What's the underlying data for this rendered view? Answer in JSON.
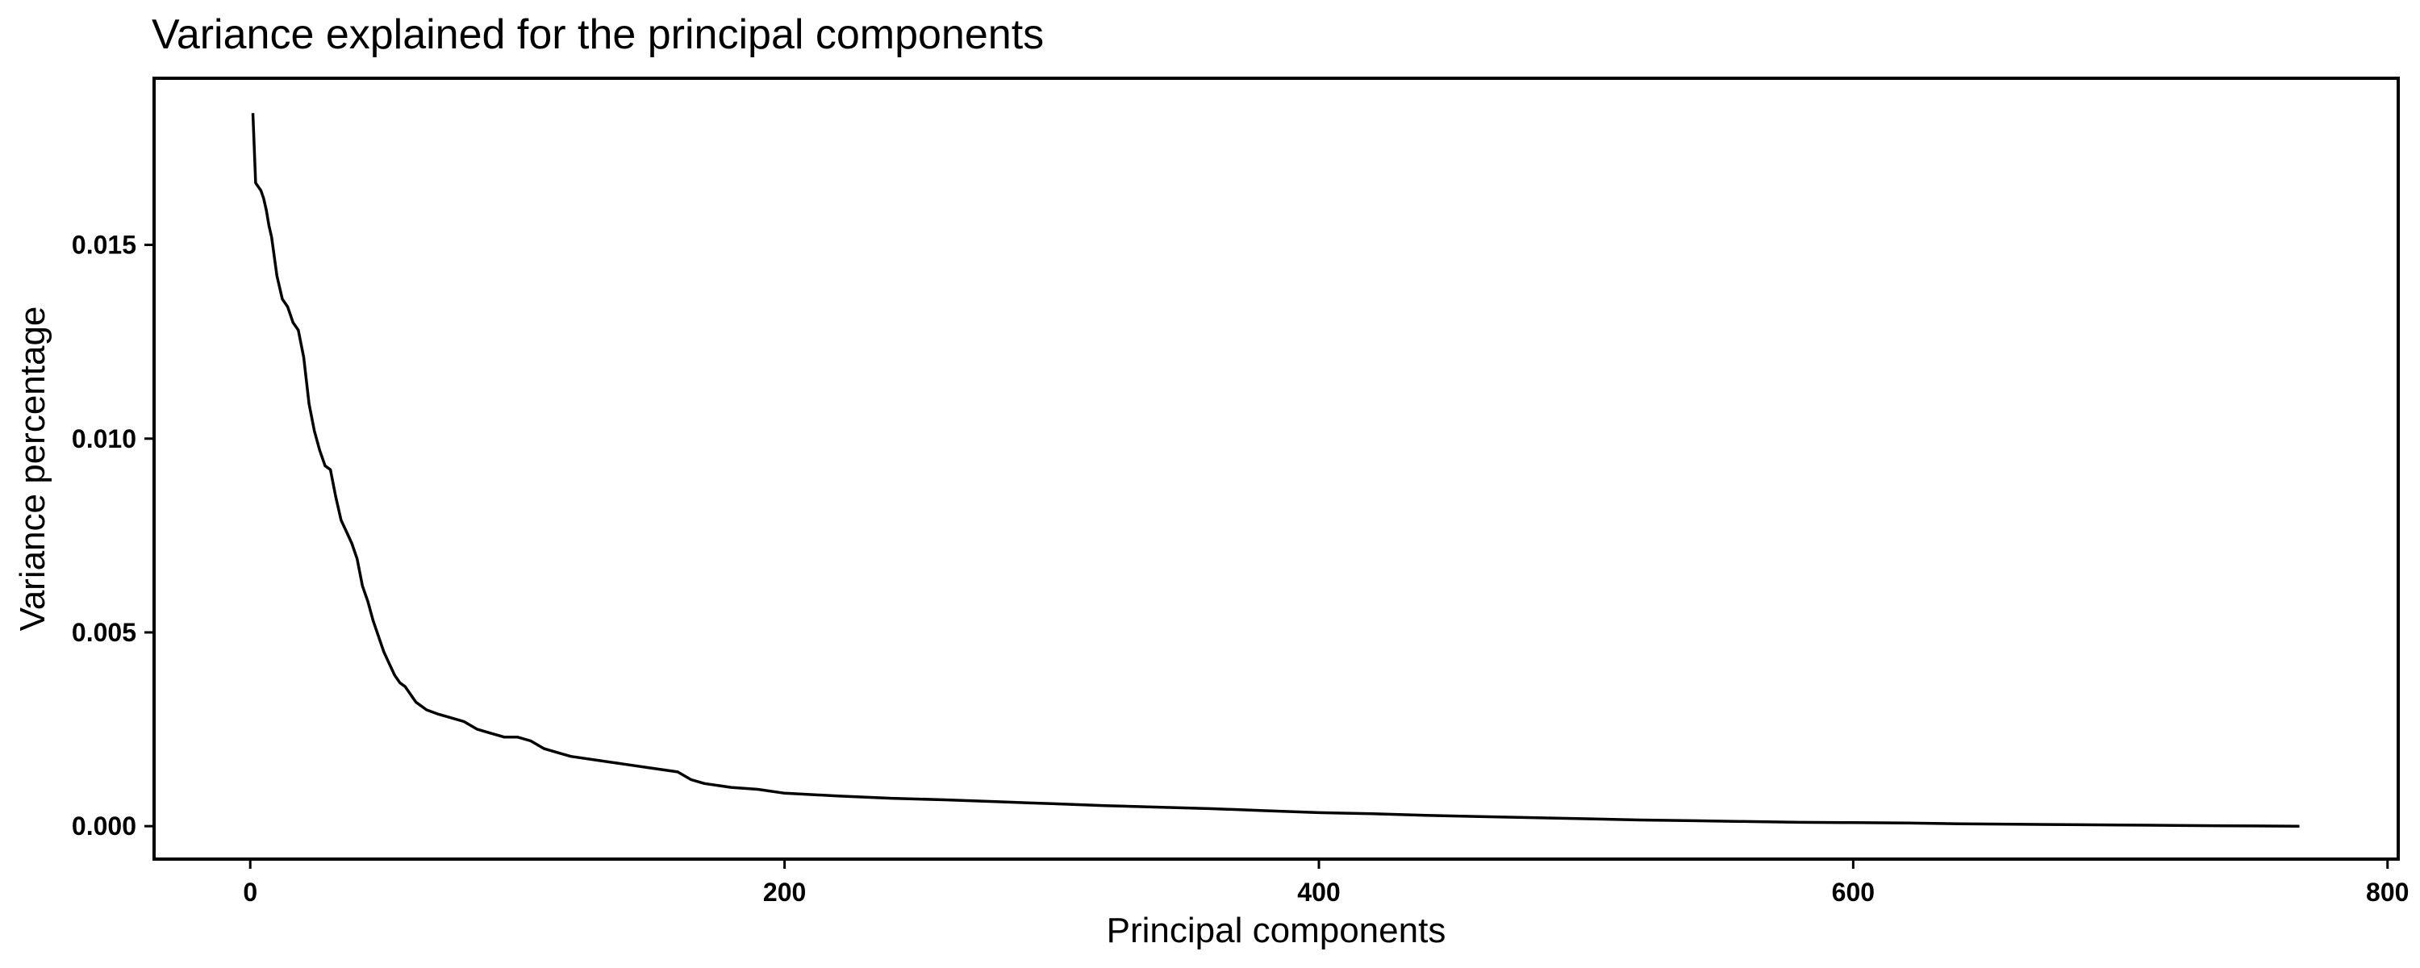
{
  "chart_data": {
    "type": "line",
    "title": "Variance explained for the principal components",
    "xlabel": "Principal components",
    "ylabel": "Variance percentage",
    "xlim": [
      -36,
      804
    ],
    "ylim": [
      -0.00085,
      0.0193
    ],
    "x_ticks": [
      0,
      200,
      400,
      600,
      800
    ],
    "x_tick_labels": [
      "0",
      "200",
      "400",
      "600",
      "800"
    ],
    "y_ticks": [
      0.0,
      0.005,
      0.01,
      0.015
    ],
    "y_tick_labels": [
      "0.000",
      "0.005",
      "0.010",
      "0.015"
    ],
    "grid": false,
    "legend": "none",
    "line_color": "#000000",
    "series": [
      {
        "x": [
          1,
          2,
          3,
          4,
          5,
          6,
          7,
          8,
          9,
          10,
          12,
          14,
          16,
          18,
          20,
          22,
          24,
          26,
          28,
          30,
          32,
          34,
          36,
          38,
          40,
          42,
          44,
          46,
          48,
          50,
          52,
          54,
          56,
          58,
          60,
          62,
          64,
          66,
          70,
          75,
          80,
          85,
          90,
          95,
          100,
          105,
          110,
          115,
          120,
          130,
          140,
          150,
          160,
          165,
          170,
          180,
          190,
          200,
          220,
          240,
          260,
          280,
          300,
          320,
          340,
          360,
          380,
          400,
          420,
          440,
          460,
          480,
          500,
          520,
          540,
          560,
          580,
          600,
          620,
          640,
          660,
          680,
          700,
          720,
          740,
          767
        ],
        "y": [
          0.0184,
          0.0166,
          0.0165,
          0.0164,
          0.0162,
          0.0159,
          0.0155,
          0.0152,
          0.0147,
          0.0142,
          0.0136,
          0.0134,
          0.013,
          0.0128,
          0.0121,
          0.0109,
          0.0102,
          0.0097,
          0.0093,
          0.0092,
          0.0085,
          0.0079,
          0.0076,
          0.0073,
          0.0069,
          0.0062,
          0.0058,
          0.0053,
          0.0049,
          0.0045,
          0.0042,
          0.0039,
          0.0037,
          0.0036,
          0.0034,
          0.0032,
          0.0031,
          0.003,
          0.0029,
          0.0028,
          0.0027,
          0.0025,
          0.0024,
          0.0023,
          0.0023,
          0.0022,
          0.002,
          0.0019,
          0.0018,
          0.0017,
          0.0016,
          0.0015,
          0.0014,
          0.0012,
          0.0011,
          0.001,
          0.00095,
          0.00085,
          0.00078,
          0.00072,
          0.00068,
          0.00063,
          0.00058,
          0.00053,
          0.00049,
          0.00045,
          0.0004,
          0.00035,
          0.00032,
          0.00028,
          0.00025,
          0.00022,
          0.00019,
          0.00016,
          0.00014,
          0.00012,
          0.0001,
          9e-05,
          8e-05,
          6e-05,
          5e-05,
          4e-05,
          3e-05,
          2e-05,
          1e-05,
          0.0
        ]
      }
    ]
  }
}
